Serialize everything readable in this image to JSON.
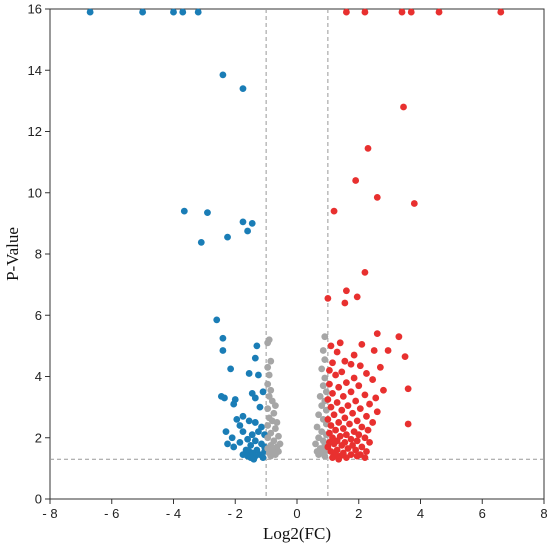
{
  "chart_data": {
    "type": "scatter",
    "title": "",
    "xlabel": "Log2(FC)",
    "ylabel": "P-Value",
    "xlim": [
      -8,
      8
    ],
    "ylim": [
      0,
      16
    ],
    "xticks": [
      -8,
      -6,
      -4,
      -2,
      0,
      2,
      4,
      6,
      8
    ],
    "xtick_labels": [
      "- 8",
      "- 6",
      "- 4",
      "- 2",
      "0",
      "2",
      "4",
      "6",
      "8"
    ],
    "yticks": [
      0,
      2,
      4,
      6,
      8,
      10,
      12,
      14,
      16
    ],
    "ytick_labels": [
      "0",
      "2",
      "4",
      "6",
      "8",
      "10",
      "12",
      "14",
      "16"
    ],
    "grid": false,
    "legend": "none",
    "thresholds": {
      "x": [
        -1,
        1
      ],
      "y": 1.3
    },
    "series": [
      {
        "color": "#1a7db6",
        "points": [
          [
            -6.7,
            15.9
          ],
          [
            -5.0,
            15.9
          ],
          [
            -4.0,
            15.9
          ],
          [
            -3.7,
            15.9
          ],
          [
            -3.2,
            15.9
          ],
          [
            -2.4,
            13.85
          ],
          [
            -1.75,
            13.4
          ],
          [
            -3.65,
            9.4
          ],
          [
            -2.9,
            9.35
          ],
          [
            -1.75,
            9.05
          ],
          [
            -1.45,
            9.0
          ],
          [
            -1.6,
            8.75
          ],
          [
            -2.25,
            8.55
          ],
          [
            -3.1,
            8.38
          ],
          [
            -2.6,
            5.85
          ],
          [
            -2.4,
            5.25
          ],
          [
            -2.4,
            4.85
          ],
          [
            -1.3,
            5.0
          ],
          [
            -1.35,
            4.6
          ],
          [
            -2.15,
            4.25
          ],
          [
            -1.55,
            4.1
          ],
          [
            -1.25,
            4.05
          ],
          [
            -2.45,
            3.35
          ],
          [
            -2.35,
            3.3
          ],
          [
            -2.0,
            3.25
          ],
          [
            -2.05,
            3.1
          ],
          [
            -1.45,
            3.45
          ],
          [
            -1.35,
            3.3
          ],
          [
            -1.1,
            3.5
          ],
          [
            -1.2,
            3.0
          ],
          [
            -1.75,
            2.7
          ],
          [
            -1.95,
            2.6
          ],
          [
            -1.55,
            2.55
          ],
          [
            -1.35,
            2.5
          ],
          [
            -1.85,
            2.4
          ],
          [
            -1.15,
            2.35
          ],
          [
            -1.25,
            2.2
          ],
          [
            -2.3,
            2.2
          ],
          [
            -1.75,
            2.2
          ],
          [
            -1.45,
            2.1
          ],
          [
            -1.05,
            2.1
          ],
          [
            -2.1,
            2.0
          ],
          [
            -1.6,
            1.95
          ],
          [
            -1.35,
            1.9
          ],
          [
            -1.85,
            1.85
          ],
          [
            -2.25,
            1.8
          ],
          [
            -1.15,
            1.8
          ],
          [
            -1.5,
            1.75
          ],
          [
            -1.05,
            1.7
          ],
          [
            -2.05,
            1.7
          ],
          [
            -1.65,
            1.6
          ],
          [
            -1.3,
            1.6
          ],
          [
            -1.55,
            1.55
          ],
          [
            -1.05,
            1.55
          ],
          [
            -1.45,
            1.5
          ],
          [
            -1.75,
            1.45
          ],
          [
            -1.2,
            1.45
          ],
          [
            -1.6,
            1.4
          ],
          [
            -1.35,
            1.4
          ],
          [
            -1.5,
            1.35
          ],
          [
            -1.1,
            1.35
          ],
          [
            -1.4,
            1.3
          ]
        ]
      },
      {
        "color": "#a6a6a6",
        "points": [
          [
            -0.9,
            5.2
          ],
          [
            -0.95,
            5.1
          ],
          [
            -0.85,
            4.5
          ],
          [
            -0.95,
            4.3
          ],
          [
            -0.9,
            4.05
          ],
          [
            -0.95,
            3.75
          ],
          [
            -0.85,
            3.55
          ],
          [
            -0.9,
            3.35
          ],
          [
            -0.8,
            3.2
          ],
          [
            -0.7,
            3.05
          ],
          [
            -0.95,
            2.95
          ],
          [
            -0.75,
            2.8
          ],
          [
            -0.9,
            2.65
          ],
          [
            -0.8,
            2.55
          ],
          [
            -0.65,
            2.5
          ],
          [
            -0.95,
            2.4
          ],
          [
            -0.7,
            2.3
          ],
          [
            -0.85,
            2.15
          ],
          [
            -0.6,
            2.05
          ],
          [
            -0.95,
            2.0
          ],
          [
            -0.75,
            1.9
          ],
          [
            -0.55,
            1.8
          ],
          [
            -0.85,
            1.75
          ],
          [
            -0.65,
            1.7
          ],
          [
            -0.95,
            1.65
          ],
          [
            -0.8,
            1.6
          ],
          [
            -0.6,
            1.55
          ],
          [
            -0.9,
            1.5
          ],
          [
            -0.7,
            1.45
          ],
          [
            -0.85,
            1.4
          ],
          [
            0.9,
            5.3
          ],
          [
            0.85,
            4.85
          ],
          [
            0.9,
            4.55
          ],
          [
            0.8,
            4.25
          ],
          [
            0.9,
            3.95
          ],
          [
            0.85,
            3.7
          ],
          [
            0.95,
            3.5
          ],
          [
            0.75,
            3.35
          ],
          [
            0.9,
            3.2
          ],
          [
            0.8,
            3.05
          ],
          [
            0.95,
            2.9
          ],
          [
            0.7,
            2.75
          ],
          [
            0.85,
            2.6
          ],
          [
            0.95,
            2.45
          ],
          [
            0.65,
            2.35
          ],
          [
            0.8,
            2.2
          ],
          [
            0.95,
            2.1
          ],
          [
            0.7,
            2.0
          ],
          [
            0.85,
            1.9
          ],
          [
            0.6,
            1.8
          ],
          [
            0.9,
            1.75
          ],
          [
            0.75,
            1.65
          ],
          [
            0.95,
            1.6
          ],
          [
            0.65,
            1.55
          ],
          [
            0.85,
            1.5
          ],
          [
            0.7,
            1.45
          ],
          [
            0.9,
            1.4
          ]
        ]
      },
      {
        "color": "#e8302f",
        "points": [
          [
            1.6,
            15.9
          ],
          [
            2.2,
            15.9
          ],
          [
            3.4,
            15.9
          ],
          [
            3.7,
            15.9
          ],
          [
            4.6,
            15.9
          ],
          [
            6.6,
            15.9
          ],
          [
            3.45,
            12.8
          ],
          [
            2.3,
            11.45
          ],
          [
            1.9,
            10.4
          ],
          [
            2.6,
            9.85
          ],
          [
            3.8,
            9.65
          ],
          [
            1.2,
            9.4
          ],
          [
            2.2,
            7.4
          ],
          [
            1.6,
            6.8
          ],
          [
            1.95,
            6.6
          ],
          [
            1.0,
            6.55
          ],
          [
            1.55,
            6.4
          ],
          [
            2.6,
            5.4
          ],
          [
            3.3,
            5.3
          ],
          [
            1.4,
            5.1
          ],
          [
            2.1,
            5.05
          ],
          [
            1.1,
            5.0
          ],
          [
            2.5,
            4.85
          ],
          [
            2.95,
            4.85
          ],
          [
            1.3,
            4.8
          ],
          [
            1.85,
            4.7
          ],
          [
            3.5,
            4.65
          ],
          [
            1.55,
            4.5
          ],
          [
            1.15,
            4.45
          ],
          [
            1.75,
            4.4
          ],
          [
            2.05,
            4.35
          ],
          [
            2.7,
            4.3
          ],
          [
            1.05,
            4.2
          ],
          [
            1.45,
            4.15
          ],
          [
            2.25,
            4.1
          ],
          [
            1.25,
            4.05
          ],
          [
            1.85,
            3.95
          ],
          [
            2.45,
            3.9
          ],
          [
            1.6,
            3.8
          ],
          [
            1.05,
            3.75
          ],
          [
            2.0,
            3.7
          ],
          [
            1.35,
            3.65
          ],
          [
            3.6,
            3.6
          ],
          [
            2.8,
            3.55
          ],
          [
            1.75,
            3.5
          ],
          [
            1.15,
            3.45
          ],
          [
            2.2,
            3.4
          ],
          [
            1.5,
            3.35
          ],
          [
            2.55,
            3.3
          ],
          [
            1.0,
            3.25
          ],
          [
            1.9,
            3.2
          ],
          [
            1.3,
            3.15
          ],
          [
            2.35,
            3.1
          ],
          [
            1.65,
            3.05
          ],
          [
            1.1,
            3.0
          ],
          [
            2.05,
            2.95
          ],
          [
            1.45,
            2.9
          ],
          [
            2.6,
            2.85
          ],
          [
            1.8,
            2.8
          ],
          [
            1.2,
            2.75
          ],
          [
            2.25,
            2.7
          ],
          [
            1.55,
            2.65
          ],
          [
            1.0,
            2.6
          ],
          [
            1.95,
            2.55
          ],
          [
            1.35,
            2.5
          ],
          [
            2.45,
            2.5
          ],
          [
            3.6,
            2.45
          ],
          [
            1.7,
            2.45
          ],
          [
            1.1,
            2.4
          ],
          [
            2.1,
            2.35
          ],
          [
            1.5,
            2.3
          ],
          [
            1.25,
            2.25
          ],
          [
            2.3,
            2.25
          ],
          [
            1.85,
            2.2
          ],
          [
            1.05,
            2.15
          ],
          [
            1.6,
            2.1
          ],
          [
            2.0,
            2.1
          ],
          [
            1.4,
            2.05
          ],
          [
            1.15,
            2.0
          ],
          [
            2.2,
            2.0
          ],
          [
            1.75,
            1.95
          ],
          [
            1.3,
            1.9
          ],
          [
            1.95,
            1.9
          ],
          [
            1.05,
            1.85
          ],
          [
            1.55,
            1.85
          ],
          [
            2.35,
            1.85
          ],
          [
            1.2,
            1.8
          ],
          [
            1.8,
            1.75
          ],
          [
            1.45,
            1.75
          ],
          [
            2.1,
            1.7
          ],
          [
            1.0,
            1.7
          ],
          [
            1.65,
            1.65
          ],
          [
            1.3,
            1.6
          ],
          [
            1.9,
            1.6
          ],
          [
            2.25,
            1.55
          ],
          [
            1.1,
            1.55
          ],
          [
            1.5,
            1.5
          ],
          [
            1.75,
            1.45
          ],
          [
            2.05,
            1.45
          ],
          [
            1.25,
            1.45
          ],
          [
            1.4,
            1.4
          ],
          [
            1.95,
            1.4
          ],
          [
            1.15,
            1.35
          ],
          [
            1.6,
            1.35
          ],
          [
            2.2,
            1.35
          ],
          [
            1.35,
            1.3
          ]
        ]
      }
    ]
  }
}
